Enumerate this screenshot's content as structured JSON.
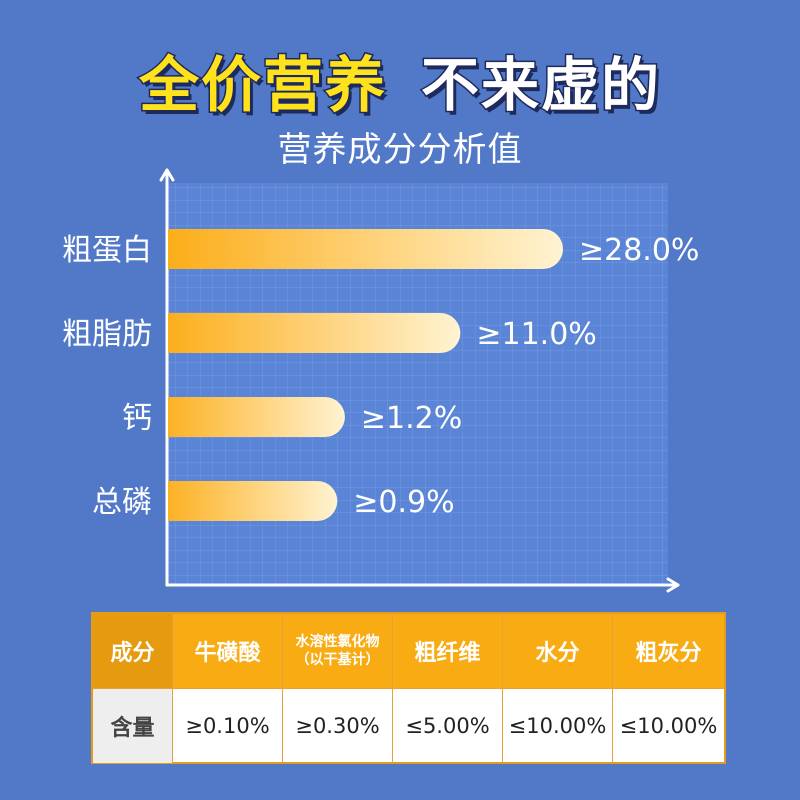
{
  "header": {
    "title_highlight": "全价营养",
    "title_rest": "不来虚的",
    "subtitle": "营养成分分析值"
  },
  "colors": {
    "background": "#5279c8",
    "grid_background": "#5a84d6",
    "bar_start": "#fcaa10",
    "bar_end": "#fff3d2",
    "table_header": "#f9ab13"
  },
  "chart_data": {
    "type": "bar",
    "orientation": "horizontal",
    "categories": [
      "粗蛋白",
      "粗脂肪",
      "钙",
      "总磷"
    ],
    "values": [
      28.0,
      11.0,
      1.2,
      0.9
    ],
    "value_labels": [
      "≥28.0%",
      "≥11.0%",
      "≥1.2%",
      "≥0.9%"
    ],
    "title": "营养成分分析值",
    "xlabel": "",
    "ylabel": "",
    "grid": true
  },
  "table": {
    "header": [
      "成分",
      "牛磺酸",
      "水溶性氯化物",
      "（以干基计）",
      "粗纤维",
      "水分",
      "粗灰分"
    ],
    "row_label": "含量",
    "values": [
      "≥0.10%",
      "≥0.30%",
      "≤5.00%",
      "≤10.00%",
      "≤10.00%"
    ]
  }
}
